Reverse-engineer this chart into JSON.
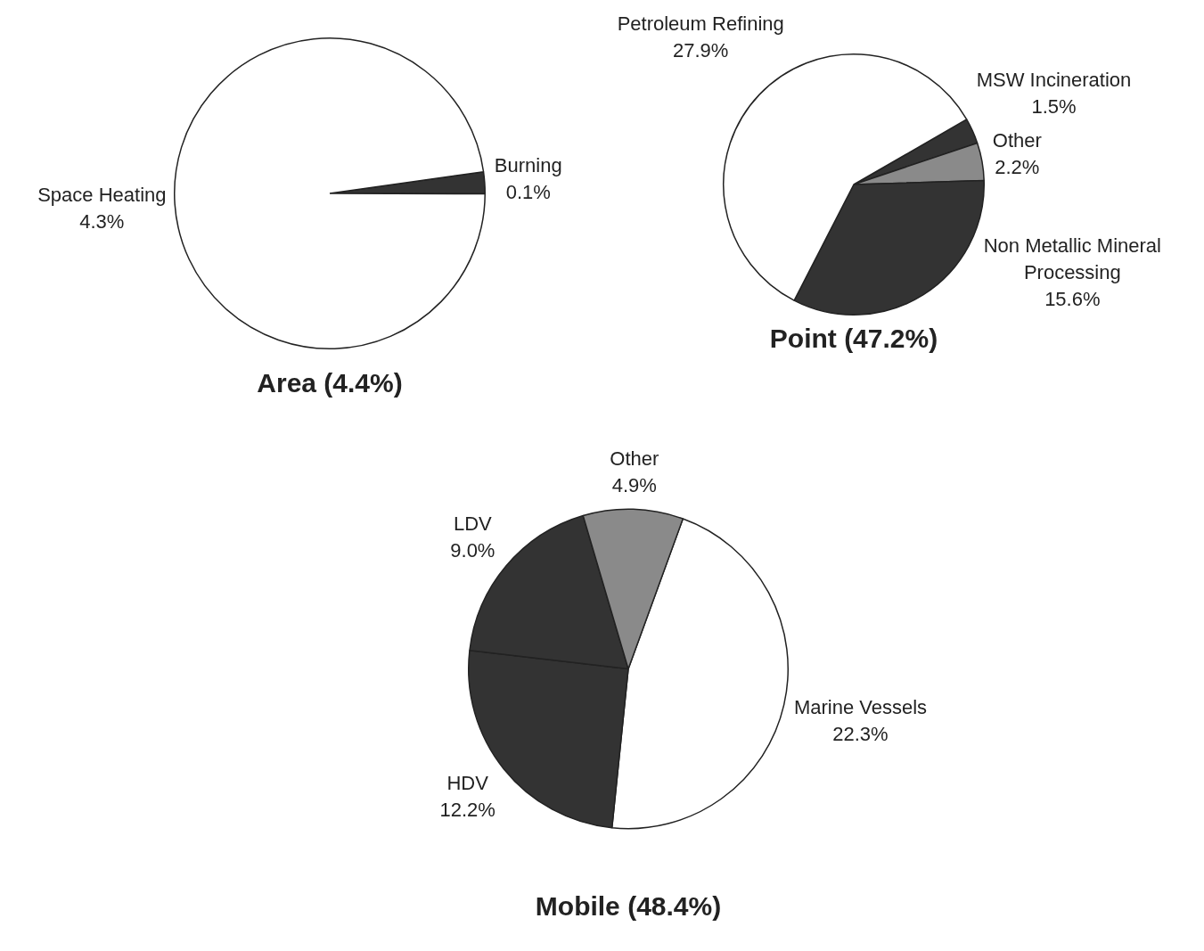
{
  "chart_data": [
    {
      "type": "pie",
      "title": "Area (4.4%)",
      "categories": [
        "Burning",
        "Space Heating"
      ],
      "values": [
        0.1,
        4.3
      ],
      "colors": [
        "#333333",
        "#ffffff"
      ],
      "value_labels": [
        "0.1%",
        "4.3%"
      ],
      "legend": false
    },
    {
      "type": "pie",
      "title": "Point (47.2%)",
      "categories": [
        "MSW Incineration",
        "Other",
        "Non Metallic Mineral Processing",
        "Petroleum Refining"
      ],
      "values": [
        1.5,
        2.2,
        15.6,
        27.9
      ],
      "colors": [
        "#333333",
        "#8a8a8a",
        "#333333",
        "#ffffff"
      ],
      "value_labels": [
        "1.5%",
        "2.2%",
        "15.6%",
        "27.9%"
      ],
      "legend": false
    },
    {
      "type": "pie",
      "title": "Mobile (48.4%)",
      "categories": [
        "Marine Vessels",
        "HDV",
        "LDV",
        "Other"
      ],
      "values": [
        22.3,
        12.2,
        9.0,
        4.9
      ],
      "colors": [
        "#ffffff",
        "#333333",
        "#333333",
        "#8a8a8a"
      ],
      "value_labels": [
        "22.3%",
        "12.2%",
        "9.0%",
        "4.9%"
      ],
      "legend": false
    }
  ]
}
